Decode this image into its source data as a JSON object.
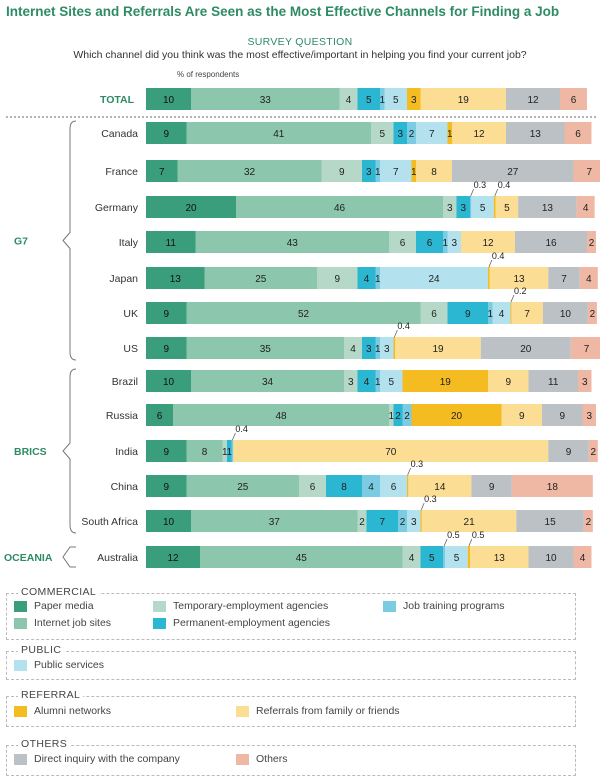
{
  "title": "Internet Sites and Referrals Are Seen as the Most Effective Channels for Finding a Job",
  "survey_label": "SURVEY QUESTION",
  "question": "Which channel did you think was the most effective/important in helping you find your current job?",
  "unit_label": "% of respondents",
  "colors": {
    "paper": "#3a9e7d",
    "internet": "#8cc6ad",
    "temp": "#b6d8c8",
    "permanent": "#2bb6d2",
    "training": "#7bcbe2",
    "public": "#b4e1ee",
    "alumni": "#f5bc22",
    "family": "#fbdd94",
    "direct": "#bcc1c6",
    "others": "#efb8a4",
    "accent": "#2e8b66"
  },
  "groups": [
    {
      "label": "G7",
      "first": 1,
      "last": 7
    },
    {
      "label": "BRICS",
      "first": 8,
      "last": 12
    },
    {
      "label": "OCEANIA",
      "first": 13,
      "last": 13
    }
  ],
  "legend": [
    {
      "title": "COMMERCIAL",
      "items": [
        {
          "key": "paper",
          "label": "Paper media"
        },
        {
          "key": "internet",
          "label": "Internet job sites"
        },
        {
          "key": "temp",
          "label": "Temporary-employment agencies"
        },
        {
          "key": "permanent",
          "label": "Permanent-employment agencies"
        },
        {
          "key": "training",
          "label": "Job training programs"
        }
      ]
    },
    {
      "title": "PUBLIC",
      "items": [
        {
          "key": "public",
          "label": "Public services"
        }
      ]
    },
    {
      "title": "REFERRAL",
      "items": [
        {
          "key": "alumni",
          "label": "Alumni networks"
        },
        {
          "key": "family",
          "label": "Referrals from family or friends"
        }
      ]
    },
    {
      "title": "OTHERS",
      "items": [
        {
          "key": "direct",
          "label": "Direct inquiry with the company"
        },
        {
          "key": "others",
          "label": "Others"
        }
      ]
    }
  ],
  "chart_data": {
    "type": "bar",
    "orientation": "horizontal",
    "stacked": true,
    "series_keys": [
      "paper",
      "internet",
      "temp",
      "permanent",
      "training",
      "public",
      "alumni",
      "family",
      "direct",
      "others"
    ],
    "rows": [
      {
        "label": "TOTAL",
        "values": [
          10,
          33,
          4,
          5,
          1,
          5,
          3,
          19,
          12,
          6
        ]
      },
      {
        "label": "Canada",
        "values": [
          9,
          41,
          5,
          3,
          2,
          7,
          1,
          12,
          13,
          6
        ]
      },
      {
        "label": "France",
        "values": [
          7,
          32,
          9,
          3,
          1,
          7,
          1,
          8,
          27,
          7
        ]
      },
      {
        "label": "Germany",
        "values": [
          20,
          46,
          3,
          3,
          0.3,
          5,
          0.4,
          5,
          13,
          4
        ]
      },
      {
        "label": "Italy",
        "values": [
          11,
          43,
          6,
          6,
          1,
          3,
          0,
          12,
          16,
          2
        ]
      },
      {
        "label": "Japan",
        "values": [
          13,
          25,
          9,
          4,
          1,
          24,
          0.4,
          13,
          7,
          4
        ]
      },
      {
        "label": "UK",
        "values": [
          9,
          52,
          6,
          9,
          1,
          4,
          0.2,
          7,
          10,
          2
        ]
      },
      {
        "label": "US",
        "values": [
          9,
          35,
          4,
          3,
          1,
          3,
          0.4,
          19,
          20,
          7
        ]
      },
      {
        "label": "Brazil",
        "values": [
          10,
          34,
          3,
          4,
          1,
          5,
          19,
          9,
          11,
          3
        ]
      },
      {
        "label": "Russia",
        "values": [
          6,
          48,
          1,
          2,
          2,
          0,
          20,
          9,
          9,
          3
        ]
      },
      {
        "label": "India",
        "values": [
          9,
          8,
          1,
          1,
          0.4,
          0,
          0,
          70,
          9,
          2
        ]
      },
      {
        "label": "China",
        "values": [
          9,
          25,
          6,
          8,
          4,
          6,
          0.3,
          14,
          9,
          18
        ]
      },
      {
        "label": "South Africa",
        "values": [
          10,
          37,
          2,
          7,
          2,
          3,
          0.3,
          21,
          15,
          2
        ]
      },
      {
        "label": "Australia",
        "values": [
          12,
          45,
          4,
          5,
          0.5,
          5,
          0.5,
          13,
          10,
          4
        ]
      }
    ]
  }
}
